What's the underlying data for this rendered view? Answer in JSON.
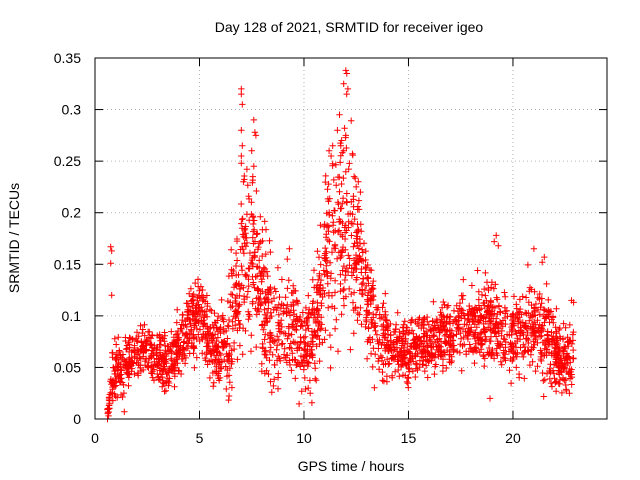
{
  "chart_data": {
    "type": "scatter",
    "title": "Day 128 of 2021, SRMTID for receiver igeo",
    "xlabel": "GPS time / hours",
    "ylabel": "SRMTID / TECUs",
    "xlim": [
      0,
      24.5
    ],
    "ylim": [
      0,
      0.35
    ],
    "x_ticks": [
      0,
      5,
      10,
      15,
      20
    ],
    "x_tick_labels": [
      "0",
      "5",
      "10",
      "15",
      "20"
    ],
    "y_ticks": [
      0,
      0.05,
      0.1,
      0.15,
      0.2,
      0.25,
      0.3,
      0.35
    ],
    "y_tick_labels": [
      "0",
      "0.05",
      "0.1",
      "0.15",
      "0.2",
      "0.25",
      "0.3",
      "0.35"
    ],
    "grid": true,
    "marker": "+",
    "color": "#ff0000",
    "x_range": [
      0.6,
      22.9
    ],
    "series": [
      {
        "name": "SRMTID",
        "trend": [
          [
            0.6,
            0.0
          ],
          [
            0.8,
            0.04
          ],
          [
            1.0,
            0.045
          ],
          [
            1.5,
            0.05
          ],
          [
            2.0,
            0.065
          ],
          [
            2.5,
            0.065
          ],
          [
            3.0,
            0.06
          ],
          [
            3.5,
            0.055
          ],
          [
            4.0,
            0.07
          ],
          [
            4.5,
            0.09
          ],
          [
            5.0,
            0.105
          ],
          [
            5.5,
            0.075
          ],
          [
            6.0,
            0.07
          ],
          [
            6.5,
            0.075
          ],
          [
            7.0,
            0.15
          ],
          [
            7.5,
            0.17
          ],
          [
            8.0,
            0.12
          ],
          [
            8.5,
            0.08
          ],
          [
            9.0,
            0.09
          ],
          [
            9.5,
            0.085
          ],
          [
            10.0,
            0.07
          ],
          [
            10.5,
            0.08
          ],
          [
            11.0,
            0.16
          ],
          [
            11.5,
            0.17
          ],
          [
            12.0,
            0.18
          ],
          [
            12.5,
            0.17
          ],
          [
            13.0,
            0.12
          ],
          [
            13.5,
            0.08
          ],
          [
            14.0,
            0.075
          ],
          [
            14.5,
            0.07
          ],
          [
            15.0,
            0.065
          ],
          [
            15.5,
            0.07
          ],
          [
            16.0,
            0.075
          ],
          [
            16.5,
            0.08
          ],
          [
            17.0,
            0.085
          ],
          [
            17.5,
            0.09
          ],
          [
            18.0,
            0.09
          ],
          [
            18.5,
            0.09
          ],
          [
            19.0,
            0.095
          ],
          [
            19.5,
            0.08
          ],
          [
            20.0,
            0.085
          ],
          [
            20.5,
            0.09
          ],
          [
            21.0,
            0.085
          ],
          [
            21.5,
            0.09
          ],
          [
            22.0,
            0.065
          ],
          [
            22.5,
            0.06
          ],
          [
            22.9,
            0.06
          ]
        ],
        "spread": [
          [
            0.6,
            0.005
          ],
          [
            1.0,
            0.02
          ],
          [
            2.0,
            0.015
          ],
          [
            4.0,
            0.02
          ],
          [
            5.0,
            0.025
          ],
          [
            6.0,
            0.02
          ],
          [
            7.0,
            0.06
          ],
          [
            8.0,
            0.05
          ],
          [
            9.0,
            0.03
          ],
          [
            10.0,
            0.025
          ],
          [
            11.0,
            0.05
          ],
          [
            12.0,
            0.07
          ],
          [
            13.0,
            0.04
          ],
          [
            14.0,
            0.02
          ],
          [
            16.0,
            0.02
          ],
          [
            18.0,
            0.025
          ],
          [
            20.0,
            0.025
          ],
          [
            21.5,
            0.03
          ],
          [
            22.9,
            0.02
          ]
        ],
        "peaks": [
          [
            0.6,
            0.0
          ],
          [
            0.65,
            0.003
          ],
          [
            0.75,
            0.167
          ],
          [
            0.8,
            0.163
          ],
          [
            0.75,
            0.151
          ],
          [
            0.8,
            0.12
          ],
          [
            7.0,
            0.32
          ],
          [
            7.0,
            0.315
          ],
          [
            7.05,
            0.305
          ],
          [
            7.0,
            0.28
          ],
          [
            7.05,
            0.265
          ],
          [
            7.0,
            0.255
          ],
          [
            7.0,
            0.248
          ],
          [
            7.1,
            0.23
          ],
          [
            7.6,
            0.29
          ],
          [
            7.65,
            0.278
          ],
          [
            7.7,
            0.275
          ],
          [
            7.5,
            0.26
          ],
          [
            7.6,
            0.245
          ],
          [
            7.55,
            0.235
          ],
          [
            9.3,
            0.165
          ],
          [
            9.2,
            0.155
          ],
          [
            12.0,
            0.338
          ],
          [
            12.05,
            0.335
          ],
          [
            11.9,
            0.325
          ],
          [
            12.1,
            0.32
          ],
          [
            11.7,
            0.295
          ],
          [
            11.6,
            0.28
          ],
          [
            12.0,
            0.275
          ],
          [
            11.8,
            0.27
          ],
          [
            11.9,
            0.26
          ],
          [
            11.2,
            0.26
          ],
          [
            11.3,
            0.255
          ],
          [
            12.4,
            0.235
          ],
          [
            12.6,
            0.23
          ],
          [
            12.5,
            0.225
          ],
          [
            12.7,
            0.22
          ],
          [
            19.2,
            0.178
          ],
          [
            19.1,
            0.172
          ],
          [
            19.3,
            0.168
          ],
          [
            21.0,
            0.165
          ],
          [
            21.5,
            0.157
          ],
          [
            21.4,
            0.152
          ],
          [
            22.8,
            0.115
          ],
          [
            22.9,
            0.113
          ],
          [
            10.3,
            0.025
          ],
          [
            1.4,
            0.007
          ],
          [
            18.9,
            0.02
          ],
          [
            22.7,
            0.025
          ],
          [
            10.2,
            0.03
          ]
        ]
      }
    ]
  }
}
